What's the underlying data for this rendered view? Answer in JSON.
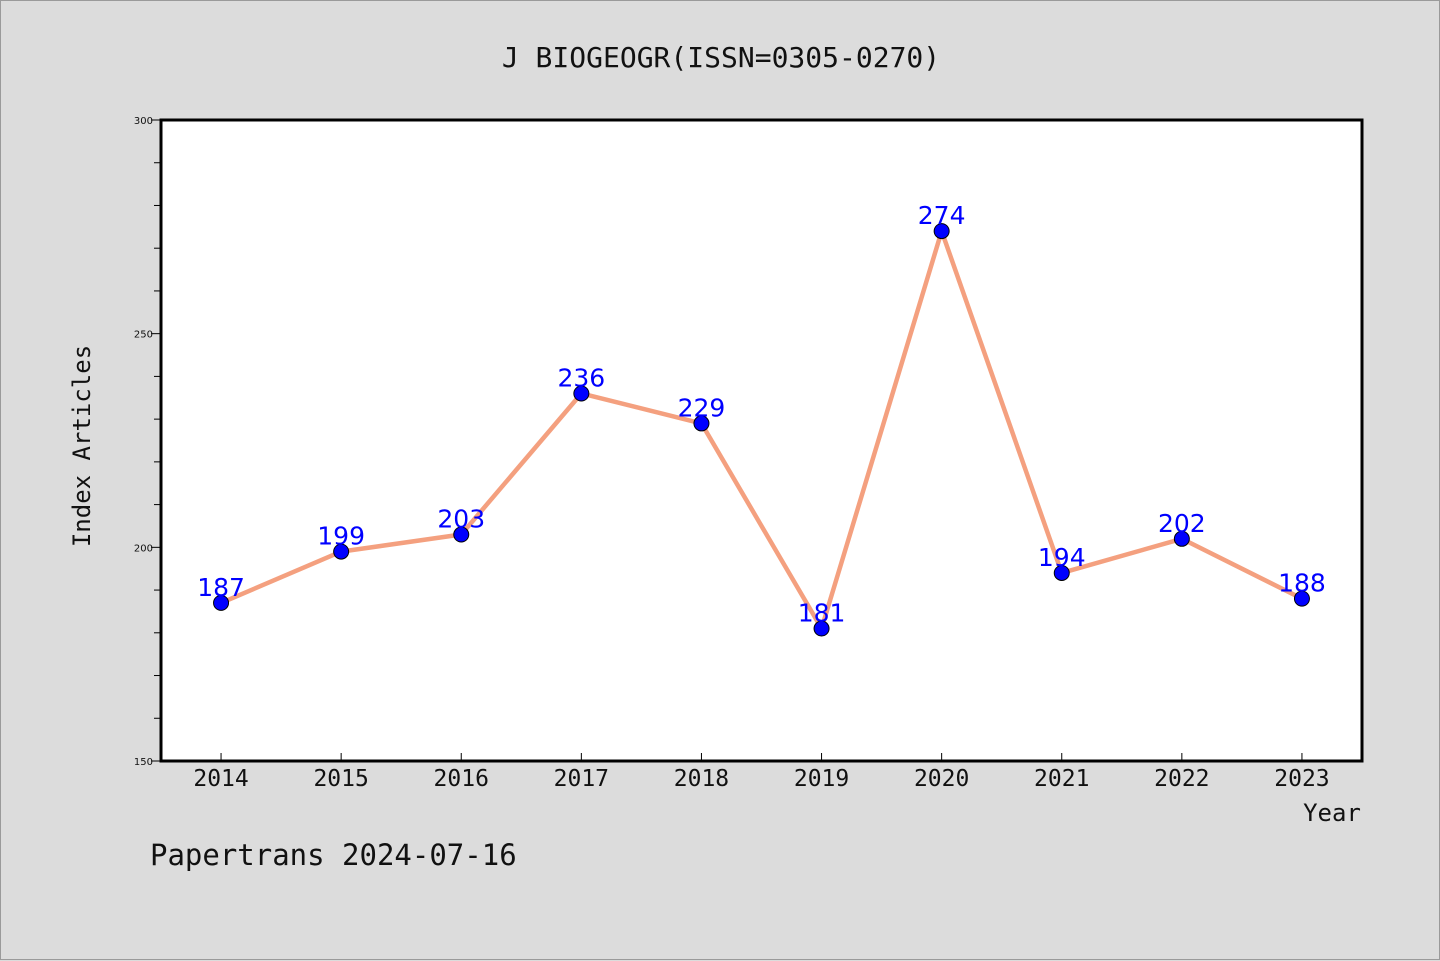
{
  "chart_data": {
    "type": "line",
    "title": "J BIOGEOGR(ISSN=0305-0270)",
    "xlabel": "Year",
    "ylabel": "Index Articles",
    "categories": [
      "2014",
      "2015",
      "2016",
      "2017",
      "2018",
      "2019",
      "2020",
      "2021",
      "2022",
      "2023"
    ],
    "series": [
      {
        "values": [
          187,
          199,
          203,
          236,
          229,
          181,
          274,
          194,
          202,
          188
        ]
      }
    ],
    "ylim": [
      150,
      300
    ],
    "yticks": [
      150,
      200,
      250,
      300
    ],
    "y_minor_step": 10,
    "grid": false,
    "show_data_labels": true,
    "colors": {
      "line": "#f4a07f",
      "marker": "#0000ff",
      "data_label": "#0000ff",
      "background": "#dcdcdc",
      "plot_area": "#ffffff"
    }
  },
  "footer": {
    "text": "Papertrans 2024-07-16"
  }
}
